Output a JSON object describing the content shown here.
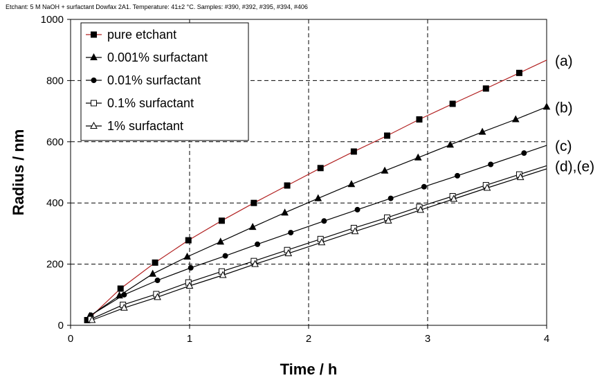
{
  "chart_data": {
    "type": "line",
    "title": "",
    "subtitle": "Etchant: 5 M NaOH + surfactant Dowfax 2A1. Temperature: 41±2 °C. Samples: #390, #392, #395, #394, #406",
    "xlabel": "Time / h",
    "ylabel": "Radius / nm",
    "xlim": [
      0,
      4
    ],
    "ylim": [
      0,
      1000
    ],
    "x_ticks": [
      "0",
      "1",
      "2",
      "3",
      "4"
    ],
    "y_ticks": [
      "0",
      "200",
      "400",
      "600",
      "800",
      "1000"
    ],
    "grid": true,
    "legend_position": "top-left",
    "series": [
      {
        "name": "pure etchant",
        "marker": "square-filled",
        "color": "#b22222",
        "annotation": "(a)",
        "curve_end_x": 4.0,
        "x": [
          0.14,
          0.42,
          0.71,
          0.99,
          1.27,
          1.54,
          1.82,
          2.1,
          2.38,
          2.66,
          2.93,
          3.21,
          3.49,
          3.77
        ],
        "y": [
          17,
          120,
          205,
          278,
          342,
          400,
          457,
          514,
          568,
          620,
          673,
          724,
          774,
          825
        ]
      },
      {
        "name": "0.001% surfactant",
        "marker": "triangle-filled",
        "color": "#000000",
        "annotation": "(b)",
        "curve_end_x": 4.0,
        "x": [
          0.16,
          0.41,
          0.69,
          0.98,
          1.26,
          1.53,
          1.8,
          2.08,
          2.36,
          2.64,
          2.92,
          3.19,
          3.46,
          3.74,
          4.0
        ],
        "y": [
          30,
          97,
          168,
          224,
          273,
          321,
          368,
          415,
          461,
          505,
          548,
          590,
          632,
          673,
          714
        ]
      },
      {
        "name": "0.01% surfactant",
        "marker": "circle-filled",
        "color": "#000000",
        "annotation": "(c)",
        "curve_end_x": 4.0,
        "x": [
          0.17,
          0.45,
          0.73,
          1.01,
          1.3,
          1.57,
          1.85,
          2.13,
          2.41,
          2.69,
          2.97,
          3.25,
          3.53,
          3.81
        ],
        "y": [
          33,
          100,
          147,
          188,
          227,
          265,
          303,
          341,
          378,
          415,
          453,
          489,
          526,
          563
        ]
      },
      {
        "name": "0.1% surfactant",
        "marker": "square-open",
        "color": "#000000",
        "annotation": "(d),(e)",
        "curve_end_x": 4.0,
        "x": [
          0.17,
          0.44,
          0.72,
          0.99,
          1.27,
          1.54,
          1.82,
          2.1,
          2.38,
          2.66,
          2.93,
          3.21,
          3.49,
          3.77
        ],
        "y": [
          20,
          67,
          102,
          140,
          176,
          210,
          246,
          282,
          318,
          352,
          387,
          422,
          458,
          493
        ]
      },
      {
        "name": "1% surfactant",
        "marker": "triangle-open",
        "color": "#000000",
        "annotation": "",
        "curve_end_x": 4.0,
        "x": [
          0.18,
          0.45,
          0.73,
          1.0,
          1.28,
          1.55,
          1.83,
          2.11,
          2.39,
          2.67,
          2.94,
          3.22,
          3.5,
          3.78
        ],
        "y": [
          17,
          57,
          92,
          129,
          164,
          200,
          235,
          271,
          307,
          342,
          377,
          413,
          449,
          484
        ]
      }
    ]
  }
}
